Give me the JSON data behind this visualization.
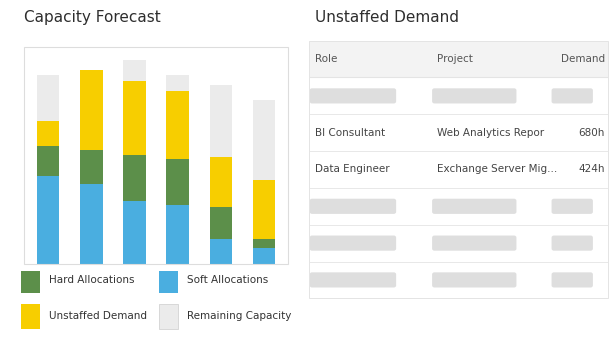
{
  "title_left": "Capacity Forecast",
  "title_right": "Unstaffed Demand",
  "bar_data": {
    "soft_allocations": [
      42,
      38,
      30,
      28,
      12,
      8
    ],
    "hard_allocations": [
      14,
      16,
      22,
      22,
      15,
      4
    ],
    "unstaffed_demand": [
      12,
      38,
      35,
      32,
      24,
      28
    ],
    "remaining_capacity": [
      22,
      0,
      10,
      8,
      34,
      38
    ]
  },
  "colors": {
    "soft": "#4AAEE0",
    "hard": "#5C8F4A",
    "unstaffed": "#F7CE00",
    "remaining": "#EBEBEB",
    "panel_border": "#DDDDDD"
  },
  "legend": [
    {
      "label": "Hard Allocations",
      "color": "#5C8F4A"
    },
    {
      "label": "Soft Allocations",
      "color": "#4AAEE0"
    },
    {
      "label": "Unstaffed Demand",
      "color": "#F7CE00"
    },
    {
      "label": "Remaining Capacity",
      "color": "#EBEBEB"
    }
  ],
  "table": {
    "headers": [
      "Role",
      "Project",
      "Demand"
    ],
    "rows": [
      {
        "role": null,
        "project": null,
        "demand": null
      },
      {
        "role": "BI Consultant",
        "project": "Web Analytics Repor",
        "demand": "680h"
      },
      {
        "role": "Data Engineer",
        "project": "Exchange Server Mig...",
        "demand": "424h"
      },
      {
        "role": null,
        "project": null,
        "demand": null
      },
      {
        "role": null,
        "project": null,
        "demand": null
      },
      {
        "role": null,
        "project": null,
        "demand": null
      }
    ],
    "placeholder_color": "#DEDEDE",
    "header_bg": "#F3F3F3",
    "row_border": "#E4E4E4",
    "text_color": "#444444",
    "header_text_color": "#555555"
  },
  "bg_color": "#FFFFFF"
}
